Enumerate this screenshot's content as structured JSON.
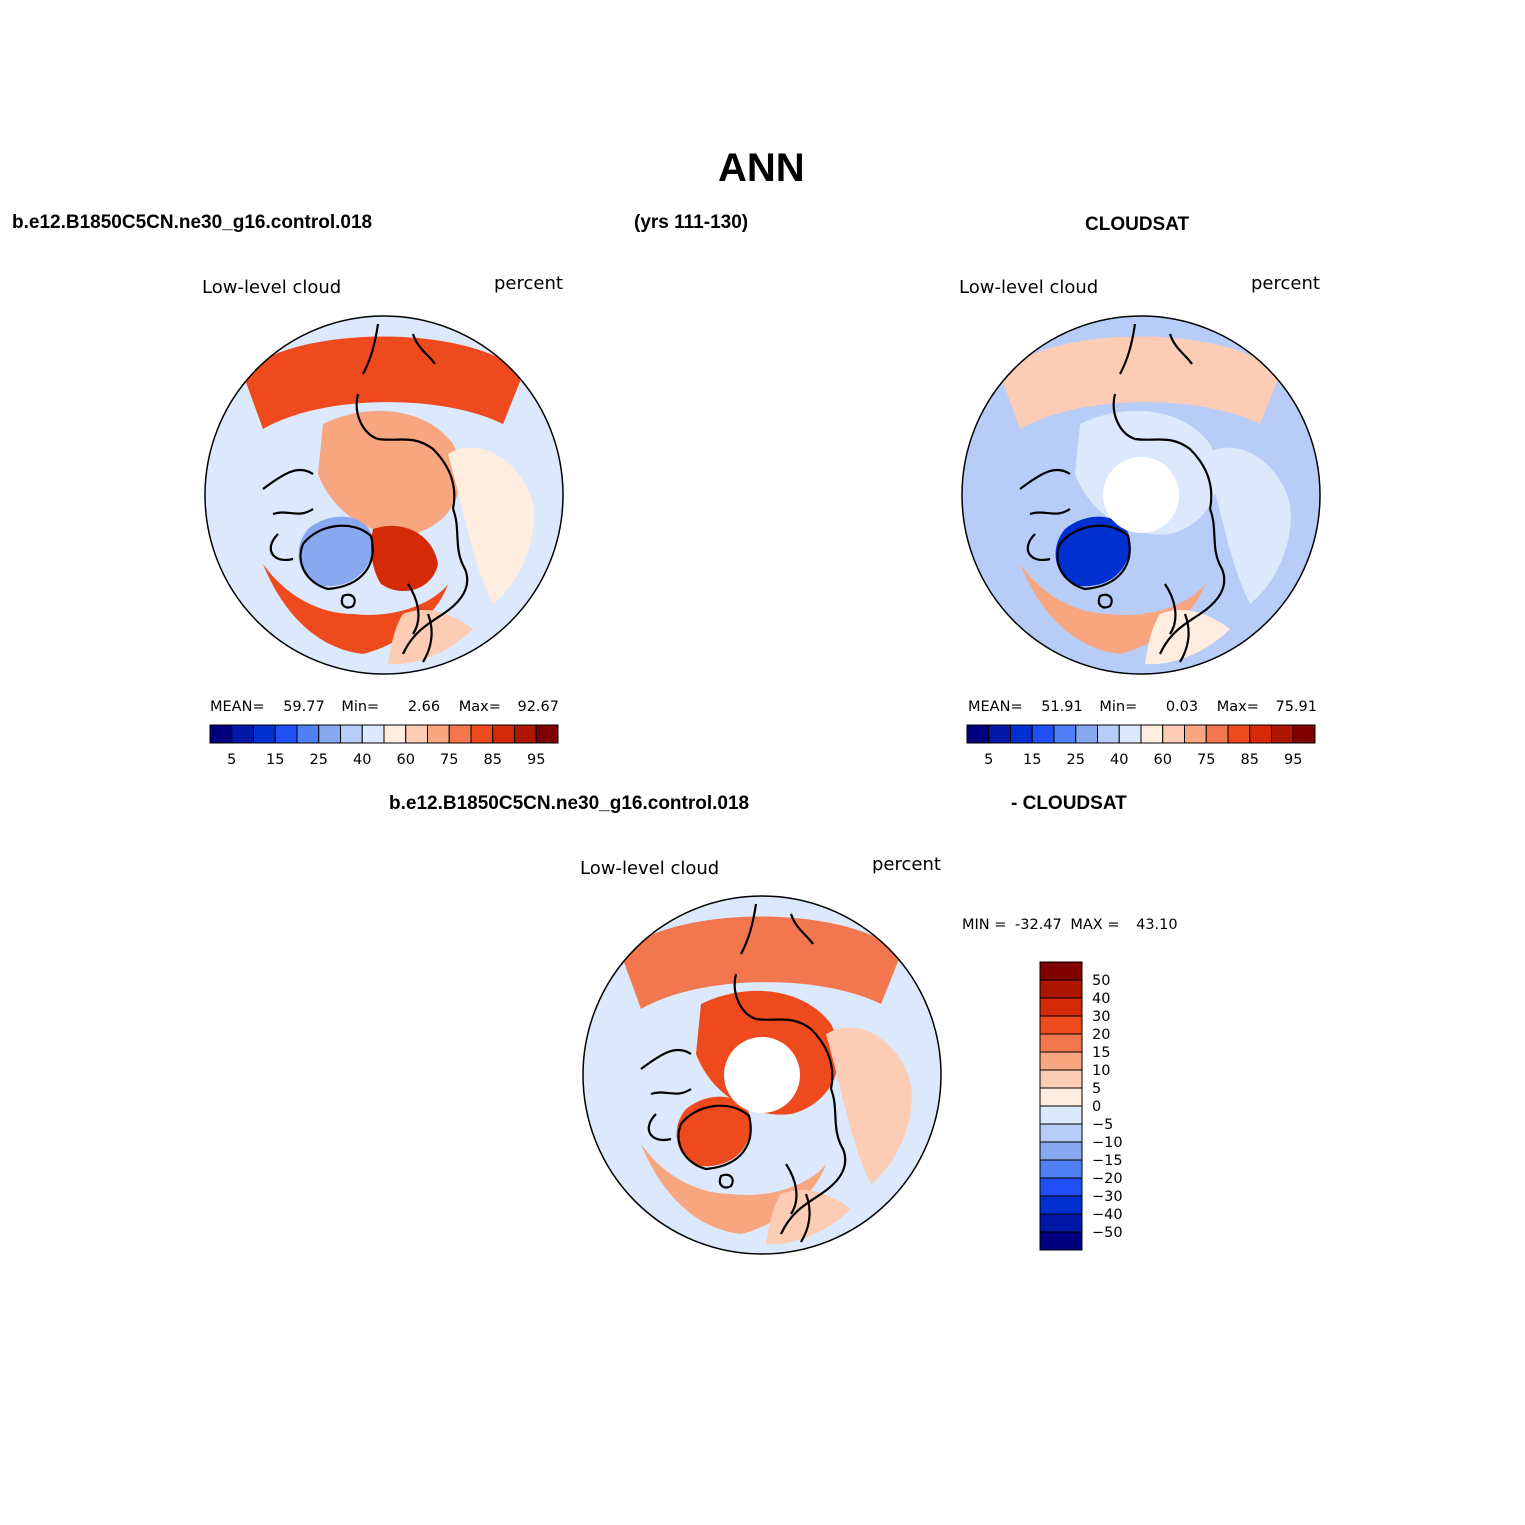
{
  "header": {
    "main_title": "ANN",
    "case_name": "b.e12.B1850C5CN.ne30_g16.control.018",
    "years": "(yrs 111-130)",
    "obs_name": "CLOUDSAT",
    "diff_case": "b.e12.B1850C5CN.ne30_g16.control.018",
    "diff_obs": "- CLOUDSAT"
  },
  "colors": {
    "abs_scale": [
      "#00007f",
      "#0018a8",
      "#0030d0",
      "#2050f5",
      "#5080f5",
      "#88a8f0",
      "#b8ccf8",
      "#dce8fc",
      "#ffeee0",
      "#fcccb4",
      "#f7a680",
      "#f3774e",
      "#ee4a1e",
      "#d42a08",
      "#ae1600",
      "#7e0000"
    ],
    "diff_scale": [
      "#00007f",
      "#0018a8",
      "#0030d0",
      "#2050f5",
      "#5080f5",
      "#88a8f0",
      "#b8ccf8",
      "#dce8fc",
      "#ffeee0",
      "#fcccb4",
      "#f7a680",
      "#f3774e",
      "#ee4a1e",
      "#d42a08",
      "#ae1600",
      "#7e0000"
    ],
    "land_outline": "#000000"
  },
  "chart_data": [
    {
      "type": "heatmap",
      "projection": "north-polar-stereographic",
      "title": "Low-level cloud",
      "units": "percent",
      "stats": {
        "mean_label": "MEAN=",
        "mean": "59.77",
        "min_label": "Min=",
        "min": "2.66",
        "max_label": "Max=",
        "max": "92.67"
      },
      "colorbar": {
        "orientation": "horizontal",
        "levels": [
          5,
          10,
          15,
          20,
          25,
          30,
          40,
          50,
          60,
          65,
          75,
          80,
          85,
          90,
          95
        ],
        "tick_labels": [
          "5",
          "15",
          "25",
          "40",
          "60",
          "75",
          "85",
          "95"
        ]
      },
      "regions": [
        {
          "name": "north-pacific",
          "value": 80
        },
        {
          "name": "central-arctic",
          "value": 65
        },
        {
          "name": "greenland",
          "value": 25
        },
        {
          "name": "norwegian-sea",
          "value": 88
        },
        {
          "name": "north-atlantic",
          "value": 80
        },
        {
          "name": "siberia-east",
          "value": 55
        },
        {
          "name": "europe",
          "value": 60
        }
      ]
    },
    {
      "type": "heatmap",
      "projection": "north-polar-stereographic",
      "title": "Low-level cloud",
      "units": "percent",
      "stats": {
        "mean_label": "MEAN=",
        "mean": "51.91",
        "min_label": "Min=",
        "min": "0.03",
        "max_label": "Max=",
        "max": "75.91"
      },
      "colorbar": {
        "orientation": "horizontal",
        "levels": [
          5,
          10,
          15,
          20,
          25,
          30,
          40,
          50,
          60,
          65,
          75,
          80,
          85,
          90,
          95
        ],
        "tick_labels": [
          "5",
          "15",
          "25",
          "40",
          "60",
          "75",
          "85",
          "95"
        ]
      },
      "regions": [
        {
          "name": "north-pacific",
          "value": 62
        },
        {
          "name": "central-arctic",
          "value": 45
        },
        {
          "name": "greenland",
          "value": 10
        },
        {
          "name": "north-atlantic",
          "value": 65
        },
        {
          "name": "siberia-east",
          "value": 40
        },
        {
          "name": "europe",
          "value": 55
        }
      ]
    },
    {
      "type": "heatmap",
      "projection": "north-polar-stereographic",
      "title": "Low-level cloud",
      "units": "percent",
      "stats": {
        "min_label": "MIN =",
        "min": "-32.47",
        "max_label": "MAX =",
        "max": "43.10"
      },
      "colorbar": {
        "orientation": "vertical",
        "levels": [
          -50,
          -40,
          -30,
          -20,
          -15,
          -10,
          -5,
          0,
          5,
          10,
          15,
          20,
          30,
          40,
          50
        ],
        "tick_labels": [
          "50",
          "40",
          "30",
          "20",
          "15",
          "10",
          "5",
          "0",
          "−5",
          "−10",
          "−15",
          "−20",
          "−30",
          "−40",
          "−50"
        ]
      },
      "regions": [
        {
          "name": "north-pacific",
          "value": 15
        },
        {
          "name": "central-arctic",
          "value": 20
        },
        {
          "name": "greenland",
          "value": 25
        },
        {
          "name": "north-atlantic",
          "value": 12
        },
        {
          "name": "siberia-east",
          "value": 8
        },
        {
          "name": "europe",
          "value": 5
        }
      ]
    }
  ]
}
